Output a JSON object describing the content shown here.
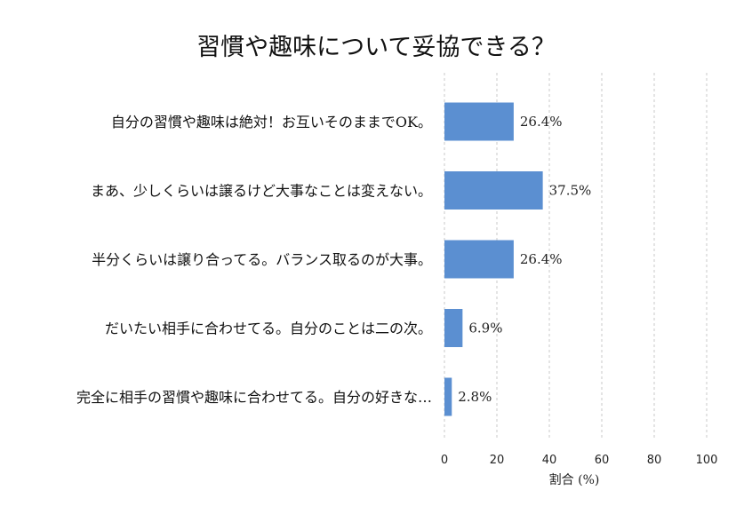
{
  "chart_data": {
    "type": "bar",
    "orientation": "horizontal",
    "title": "習慣や趣味について妥協できる？",
    "xlabel": "割合 (%)",
    "ylabel": "",
    "xlim": [
      0,
      100
    ],
    "xticks": [
      "0",
      "20",
      "40",
      "60",
      "80",
      "100"
    ],
    "grid": true,
    "categories": [
      "自分の習慣や趣味は絶対！お互いそのままでOK。",
      "まあ、少しくらいは譲るけど大事なことは変えない。",
      "半分くらいは譲り合ってる。バランス取るのが大事。",
      "だいたい相手に合わせてる。自分のことは二の次。",
      "完全に相手の習慣や趣味に合わせてる。自分の好きな…"
    ],
    "values": [
      26.4,
      37.5,
      26.4,
      6.9,
      2.8
    ],
    "value_labels": [
      "26.4%",
      "37.5%",
      "26.4%",
      "6.9%",
      "2.8%"
    ],
    "bar_color": "#5b8fd1"
  }
}
